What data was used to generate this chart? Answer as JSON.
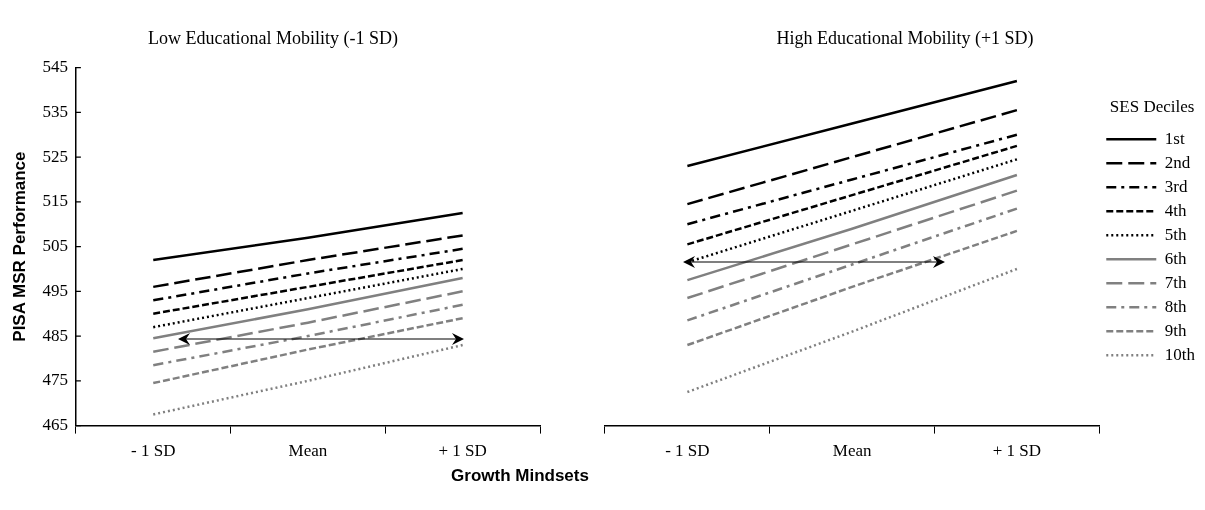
{
  "chart_data": [
    {
      "type": "line",
      "title": "Low Educational Mobility (-1 SD)",
      "xlabel": "Growth Mindsets",
      "ylabel": "PISA MSR Performance",
      "categories": [
        "- 1 SD",
        "Mean",
        "+ 1 SD"
      ],
      "ylim": [
        465,
        545
      ],
      "yticks": [
        465,
        475,
        485,
        495,
        505,
        515,
        525,
        535,
        545
      ],
      "grid": false,
      "legend": false,
      "marker": "none",
      "series": [
        {
          "color": "#000000",
          "line_style": "solid",
          "values": [
            502,
            507,
            512.5
          ]
        },
        {
          "color": "#000000",
          "line_style": "longdash",
          "values": [
            496,
            502,
            507.5
          ]
        },
        {
          "color": "#000000",
          "line_style": "dashdot",
          "values": [
            493,
            499,
            504.5
          ]
        },
        {
          "color": "#000000",
          "line_style": "dashed",
          "values": [
            490,
            496,
            502
          ]
        },
        {
          "color": "#000000",
          "line_style": "dotted",
          "values": [
            487,
            493.5,
            500
          ]
        },
        {
          "color": "#808080",
          "line_style": "solid",
          "values": [
            484.5,
            491,
            498
          ]
        },
        {
          "color": "#808080",
          "line_style": "longdash",
          "values": [
            481.5,
            488,
            495
          ]
        },
        {
          "color": "#808080",
          "line_style": "dashdot",
          "values": [
            478.5,
            485,
            492
          ]
        },
        {
          "color": "#808080",
          "line_style": "dashed",
          "values": [
            474.5,
            482,
            489
          ]
        },
        {
          "color": "#808080",
          "line_style": "dotted",
          "values": [
            467.5,
            475,
            483
          ]
        }
      ]
    },
    {
      "type": "line",
      "title": "High Educational Mobility (+1 SD)",
      "categories": [
        "- 1 SD",
        "Mean",
        "+ 1 SD"
      ],
      "ylim": [
        465,
        545
      ],
      "yticks": [
        465,
        475,
        485,
        495,
        505,
        515,
        525,
        535,
        545
      ],
      "tick_labels": "x",
      "grid": false,
      "legend": "right",
      "legend_title": "SES Deciles",
      "marker": "none",
      "series": [
        {
          "name": "1st",
          "color": "#000000",
          "line_style": "solid",
          "values": [
            523,
            532.5,
            542
          ]
        },
        {
          "name": "2nd",
          "color": "#000000",
          "line_style": "longdash",
          "values": [
            514.5,
            525,
            535.5
          ]
        },
        {
          "name": "3rd",
          "color": "#000000",
          "line_style": "dashdot",
          "values": [
            510,
            520,
            530
          ]
        },
        {
          "name": "4th",
          "color": "#000000",
          "line_style": "dashed",
          "values": [
            505.5,
            516.5,
            527.5
          ]
        },
        {
          "name": "5th",
          "color": "#000000",
          "line_style": "dotted",
          "values": [
            501.5,
            513,
            524.5
          ]
        },
        {
          "name": "6th",
          "color": "#808080",
          "line_style": "solid",
          "values": [
            497.5,
            509,
            521
          ]
        },
        {
          "name": "7th",
          "color": "#808080",
          "line_style": "longdash",
          "values": [
            493.5,
            505.5,
            517.5
          ]
        },
        {
          "name": "8th",
          "color": "#808080",
          "line_style": "dashdot",
          "values": [
            488.5,
            501,
            513.5
          ]
        },
        {
          "name": "9th",
          "color": "#808080",
          "line_style": "dashed",
          "values": [
            483,
            496,
            508.5
          ]
        },
        {
          "name": "10th",
          "color": "#808080",
          "line_style": "dotted",
          "values": [
            472.5,
            486,
            500
          ]
        }
      ]
    }
  ]
}
